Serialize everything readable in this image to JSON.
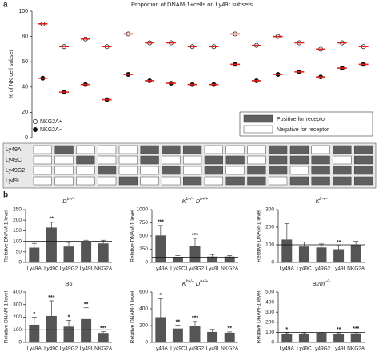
{
  "panel_labels": [
    "a",
    "b"
  ],
  "chart_data": [
    {
      "type": "dot",
      "title": "Proportion of DNAM-1+cells on Ly49r subsets",
      "y_label": "% of NK cell subset",
      "ylim": [
        0,
        100
      ],
      "yticks": [
        0,
        20,
        40,
        60,
        80,
        100
      ],
      "mean_color": "#e0201b",
      "series": [
        {
          "name": "NKG2A+",
          "color": "#ffffff",
          "values": [
            90,
            72,
            78,
            72,
            82,
            75,
            75,
            72,
            72,
            82,
            73,
            80,
            75,
            70,
            75,
            72
          ]
        },
        {
          "name": "NKG2A−",
          "color": "#111111",
          "values": [
            47,
            36,
            42,
            30,
            50,
            45,
            43,
            42,
            42,
            58,
            45,
            50,
            52,
            48,
            55,
            58
          ]
        }
      ],
      "receptor_table": {
        "rows": [
          "Ly49A",
          "Ly49C",
          "Ly49G2",
          "Ly49I"
        ],
        "positive_label": "Positive for receptor",
        "negative_label": "Negative for receptor",
        "positive_color": "#606060",
        "negative_color": "#ffffff",
        "cells": [
          [
            false,
            true,
            false,
            false,
            false,
            true,
            true,
            true,
            false,
            false,
            false,
            true,
            true,
            false,
            true,
            true
          ],
          [
            false,
            false,
            true,
            false,
            false,
            true,
            false,
            false,
            true,
            true,
            false,
            true,
            true,
            true,
            false,
            true
          ],
          [
            false,
            false,
            false,
            true,
            false,
            false,
            true,
            false,
            true,
            false,
            true,
            true,
            false,
            true,
            true,
            true
          ],
          [
            false,
            false,
            false,
            false,
            true,
            false,
            false,
            true,
            false,
            true,
            true,
            false,
            true,
            true,
            true,
            true
          ]
        ]
      }
    },
    {
      "type": "bar",
      "title": [
        {
          "text": "D"
        },
        {
          "text": "b−/−",
          "sup": true
        }
      ],
      "y_label": "Relative DNAM-1 level",
      "color": "#555555",
      "refline": 100,
      "categories": [
        "Ly49A",
        "Ly49C",
        "Ly49G2",
        "Ly49I",
        "NKG2A"
      ],
      "values": [
        70,
        165,
        75,
        95,
        90
      ],
      "errors": [
        20,
        25,
        20,
        10,
        15
      ],
      "significance": [
        null,
        "**",
        null,
        null,
        null
      ],
      "ylim": [
        0,
        250
      ],
      "yticks": [
        0,
        50,
        100,
        150,
        200,
        250
      ]
    },
    {
      "type": "bar",
      "title": [
        {
          "text": "K"
        },
        {
          "text": "b−/−",
          "sup": true
        },
        {
          "text": " D"
        },
        {
          "text": "b+/+",
          "sup": true
        }
      ],
      "y_label": "Relative DNAM-1 level",
      "color": "#555555",
      "refline": 100,
      "categories": [
        "Ly49A",
        "Ly49C",
        "Ly49G2",
        "Ly49I",
        "NKG2A"
      ],
      "values": [
        510,
        100,
        305,
        110,
        110
      ],
      "errors": [
        190,
        30,
        150,
        40,
        20
      ],
      "significance": [
        "***",
        null,
        "***",
        null,
        null
      ],
      "ylim": [
        0,
        1000
      ],
      "yticks": [
        0,
        250,
        500,
        750,
        1000
      ]
    },
    {
      "type": "bar",
      "title": [
        {
          "text": "K"
        },
        {
          "text": "b−/−",
          "sup": true
        }
      ],
      "y_label": "Relative DNAM-1 level",
      "color": "#555555",
      "refline": 100,
      "categories": [
        "Ly49A",
        "Ly49C",
        "Ly49G2",
        "Ly49I",
        "NKG2A"
      ],
      "values": [
        130,
        90,
        85,
        75,
        100
      ],
      "errors": [
        90,
        25,
        20,
        20,
        20
      ],
      "significance": [
        null,
        null,
        null,
        "**",
        null
      ],
      "ylim": [
        0,
        300
      ],
      "yticks": [
        0,
        100,
        200,
        300
      ]
    },
    {
      "type": "bar",
      "title": [
        {
          "text": "B6"
        }
      ],
      "y_label": "Relative DNAM-1 level",
      "color": "#555555",
      "refline": 100,
      "categories": [
        "Ly49A",
        "Ly49C",
        "Ly49G2",
        "Ly49I",
        "NKG2A"
      ],
      "values": [
        140,
        210,
        125,
        185,
        75
      ],
      "errors": [
        60,
        120,
        50,
        90,
        10
      ],
      "significance": [
        "*",
        "***",
        "*",
        "**",
        "***"
      ],
      "ylim": [
        0,
        400
      ],
      "yticks": [
        0,
        100,
        200,
        300,
        400
      ]
    },
    {
      "type": "bar",
      "title": [
        {
          "text": "K"
        },
        {
          "text": "b+/+",
          "sup": true
        },
        {
          "text": " D"
        },
        {
          "text": "b+/+",
          "sup": true
        }
      ],
      "y_label": "Relative DNAM-1 level",
      "color": "#555555",
      "refline": 100,
      "categories": [
        "Ly49A",
        "Ly49C",
        "Ly49G2",
        "Ly49I",
        "NKG2A"
      ],
      "values": [
        300,
        165,
        200,
        125,
        115
      ],
      "errors": [
        220,
        40,
        50,
        30,
        10
      ],
      "significance": [
        "*",
        "**",
        "***",
        null,
        "**"
      ],
      "ylim": [
        0,
        600
      ],
      "yticks": [
        0,
        200,
        400,
        600
      ]
    },
    {
      "type": "bar",
      "title": [
        {
          "text": "B2m"
        },
        {
          "text": "−/−",
          "sup": true
        }
      ],
      "y_label": "Relative DNAM-1 level",
      "color": "#555555",
      "refline": 100,
      "categories": [
        "Ly49A",
        "Ly49C",
        "Ly49G2",
        "Ly49I",
        "NKG2A"
      ],
      "values": [
        85,
        85,
        95,
        85,
        90
      ],
      "errors": [
        10,
        10,
        5,
        10,
        10
      ],
      "significance": [
        "*",
        null,
        null,
        "**",
        "***"
      ],
      "ylim": [
        0,
        500
      ],
      "yticks": [
        0,
        100,
        200,
        300,
        400,
        500
      ]
    }
  ]
}
